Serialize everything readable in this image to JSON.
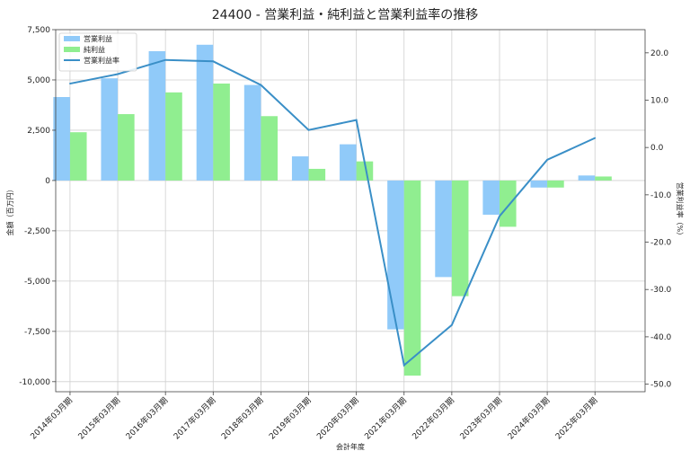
{
  "chart_data": {
    "type": "bar",
    "title": "24400 - 営業利益・純利益と営業利益率の推移",
    "xlabel": "会計年度",
    "ylabel": "金額（百万円）",
    "y2label": "営業利益率（%）",
    "categories": [
      "2014年03月期",
      "2015年03月期",
      "2016年03月期",
      "2017年03月期",
      "2018年03月期",
      "2019年03月期",
      "2020年03月期",
      "2021年03月期",
      "2022年03月期",
      "2023年03月期",
      "2024年03月期",
      "2025年03月期"
    ],
    "series": [
      {
        "name": "営業利益",
        "kind": "bar",
        "axis": "left",
        "color": "#90caf9",
        "values": [
          4150,
          5080,
          6430,
          6750,
          4750,
          1200,
          1800,
          -7400,
          -4800,
          -1700,
          -350,
          250
        ]
      },
      {
        "name": "純利益",
        "kind": "bar",
        "axis": "left",
        "color": "#90ee90",
        "values": [
          2400,
          3300,
          4380,
          4820,
          3200,
          580,
          950,
          -9700,
          -5750,
          -2300,
          -350,
          200
        ]
      },
      {
        "name": "営業利益率",
        "kind": "line",
        "axis": "right",
        "color": "#3a8fc7",
        "values": [
          13.5,
          15.5,
          18.5,
          18.2,
          13.2,
          3.7,
          5.8,
          -46.0,
          -37.5,
          -14.5,
          -2.6,
          2.0
        ]
      }
    ],
    "ylim": [
      -10500,
      7500
    ],
    "yticks": [
      7500,
      5000,
      2500,
      0,
      -2500,
      -5000,
      -7500,
      -10000
    ],
    "ytick_labels": [
      "7,500",
      "5,000",
      "2,500",
      "0",
      "-2,500",
      "-5,000",
      "-7,500",
      "-10,000"
    ],
    "y2lim": [
      -51.6,
      24.9
    ],
    "y2ticks": [
      20,
      10,
      0,
      -10,
      -20,
      -30,
      -40,
      -50
    ],
    "y2tick_labels": [
      "20.0",
      "10.0",
      "0.0",
      "-10.0",
      "-20.0",
      "-30.0",
      "-40.0",
      "-50.0"
    ],
    "grid": true,
    "legend_position": "top-left"
  }
}
